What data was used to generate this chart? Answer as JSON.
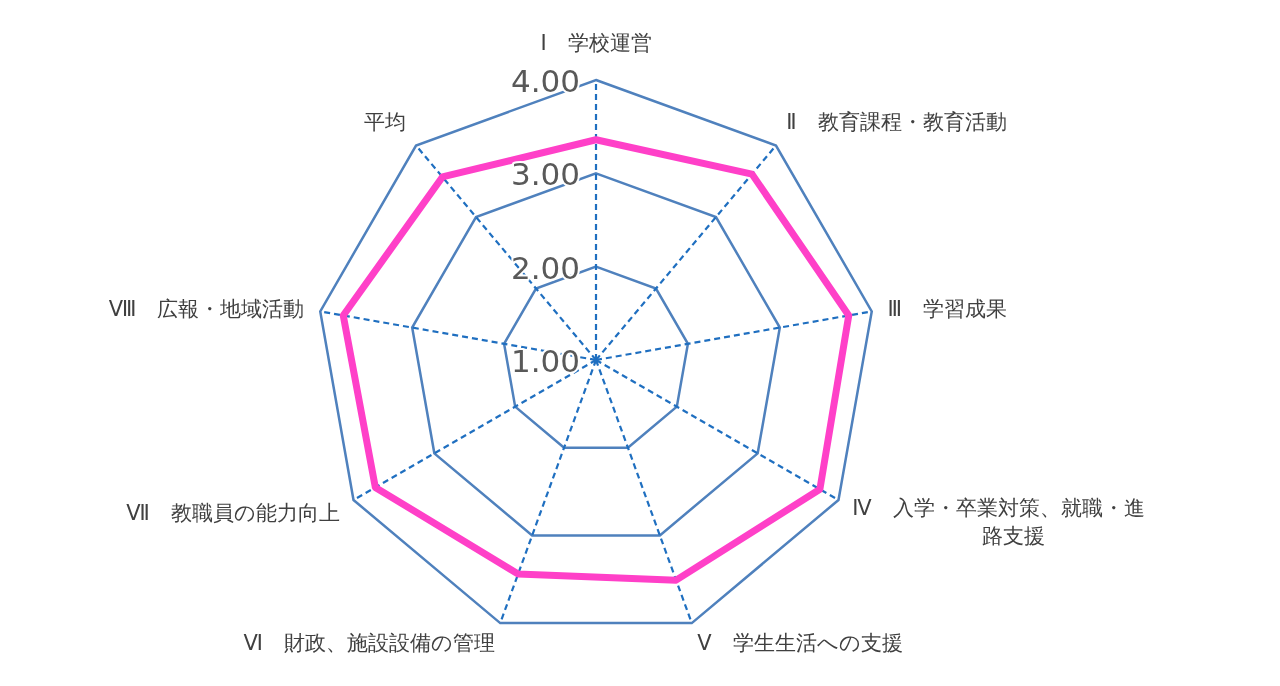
{
  "chart_data": {
    "type": "radar",
    "categories": [
      "Ⅰ　学校運営",
      "Ⅱ　教育課程・教育活動",
      "Ⅲ　学習成果",
      "Ⅳ　入学・卒業対策、就職・進路支援",
      "Ⅴ　学生生活への支援",
      "Ⅵ　財政、施設設備の管理",
      "Ⅶ　教職員の能力向上",
      "Ⅷ　広報・地域活動",
      "平均"
    ],
    "series": [
      {
        "color": "#ff40c8",
        "values": [
          3.36,
          3.6,
          3.75,
          3.77,
          3.51,
          3.44,
          3.73,
          3.75,
          3.56
        ]
      }
    ],
    "ylim": [
      1,
      4
    ],
    "yticks": [
      {
        "value": 1,
        "label": "1.00"
      },
      {
        "value": 2,
        "label": "2.00"
      },
      {
        "value": 3,
        "label": "3.00"
      },
      {
        "value": 4,
        "label": "4.00"
      }
    ],
    "grid": true
  }
}
